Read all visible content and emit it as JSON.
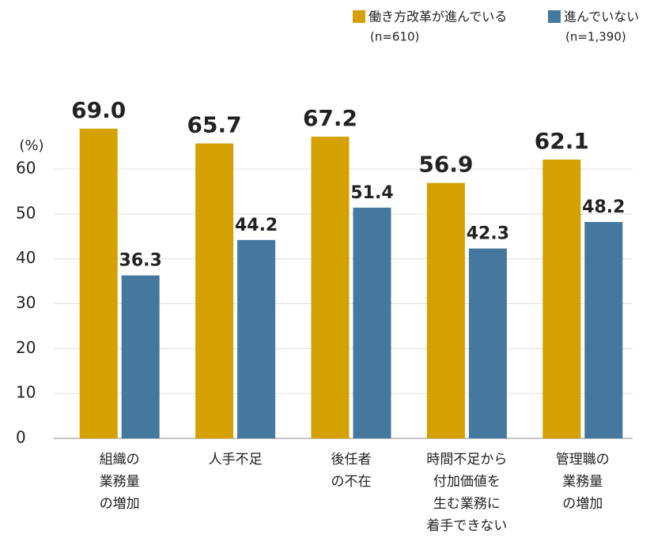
{
  "chart_data": {
    "type": "bar",
    "unit_label": "(%)",
    "categories": [
      [
        "組織の",
        "業務量",
        "の増加"
      ],
      [
        "人手不足"
      ],
      [
        "後任者",
        "の不在"
      ],
      [
        "時間不足から",
        "付加価値を",
        "生む業務に",
        "着手できない"
      ],
      [
        "管理職の",
        "業務量",
        "の増加"
      ]
    ],
    "series": [
      {
        "name": "働き方改革が進んでいる",
        "sample": "(n=610)",
        "color": "#d4a100",
        "values": [
          69.0,
          65.7,
          67.2,
          56.9,
          62.1
        ],
        "value_labels": [
          "69.0",
          "65.7",
          "67.2",
          "56.9",
          "62.1"
        ]
      },
      {
        "name": "進んでいない",
        "sample": "(n=1,390)",
        "color": "#44789f",
        "values": [
          36.3,
          44.2,
          51.4,
          42.3,
          48.2
        ],
        "value_labels": [
          "36.3",
          "44.2",
          "51.4",
          "42.3",
          "48.2"
        ]
      }
    ],
    "ylim": [
      0,
      60
    ],
    "yticks": [
      0,
      10,
      20,
      30,
      40,
      50,
      60
    ],
    "grid": true
  }
}
